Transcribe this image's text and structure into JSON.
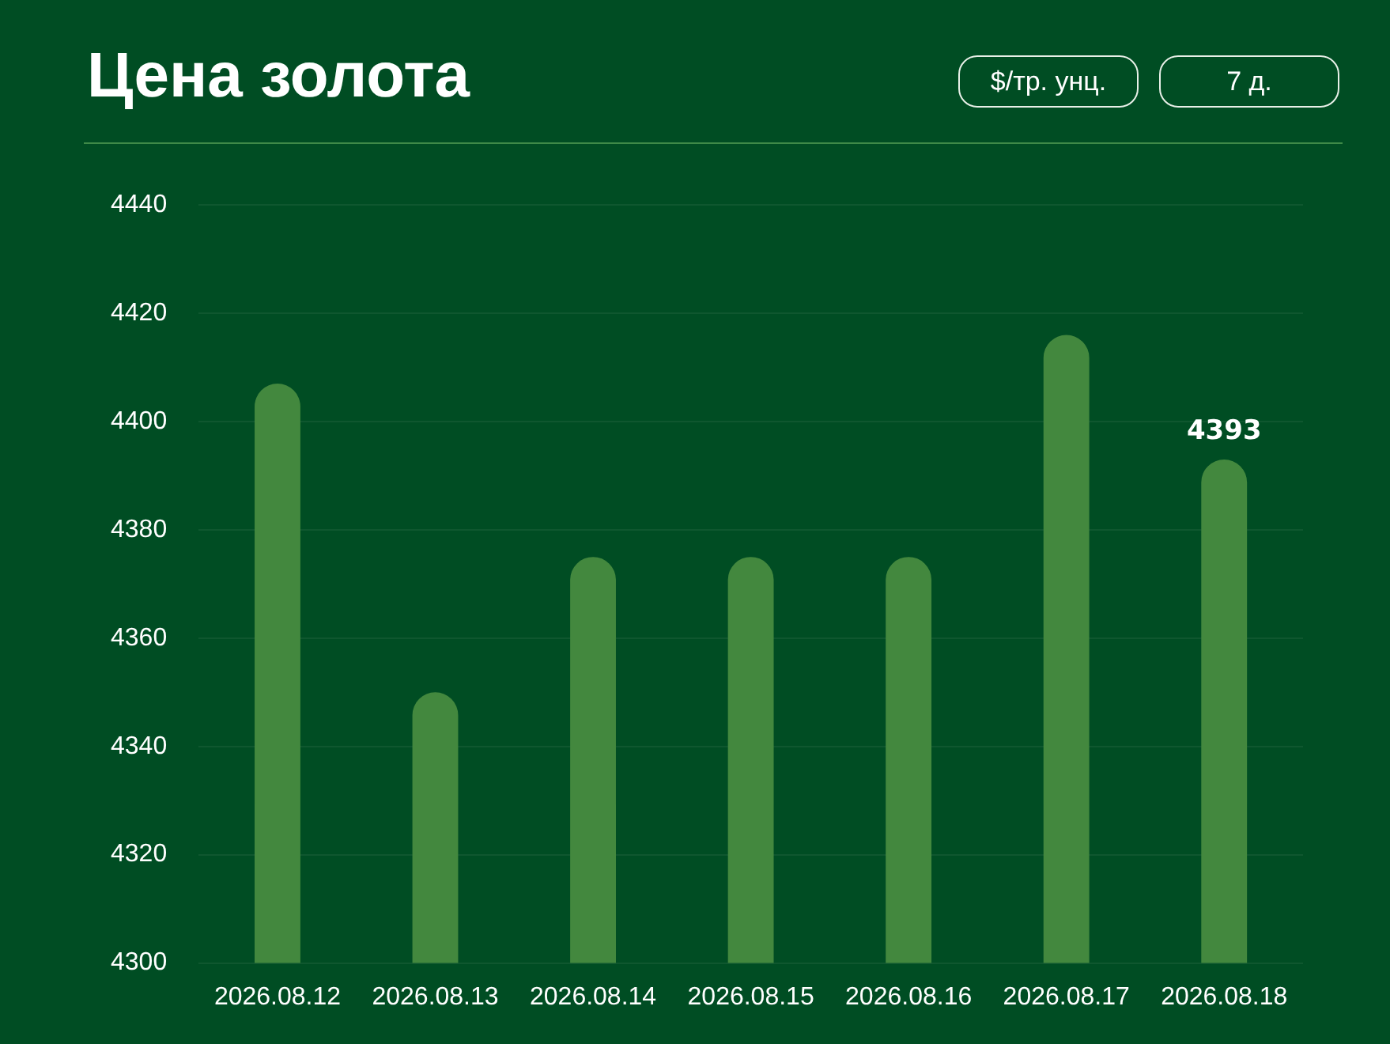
{
  "chart_data": {
    "type": "bar",
    "title": "Цена золота",
    "annotations": [
      "$/тр. унц.",
      "7 д."
    ],
    "categories": [
      "2026.08.12",
      "2026.08.13",
      "2026.08.14",
      "2026.08.15",
      "2026.08.16",
      "2026.08.17",
      "2026.08.18"
    ],
    "values": [
      4407,
      4350,
      4375,
      4375,
      4375,
      4416,
      4393
    ],
    "value_labels": [
      null,
      null,
      null,
      null,
      null,
      null,
      "4393"
    ],
    "color": "#43883e",
    "ylim": [
      4300,
      4440
    ],
    "yticks": [
      4300,
      4320,
      4340,
      4360,
      4380,
      4400,
      4420,
      4440
    ],
    "grid": "y",
    "legend": false
  }
}
